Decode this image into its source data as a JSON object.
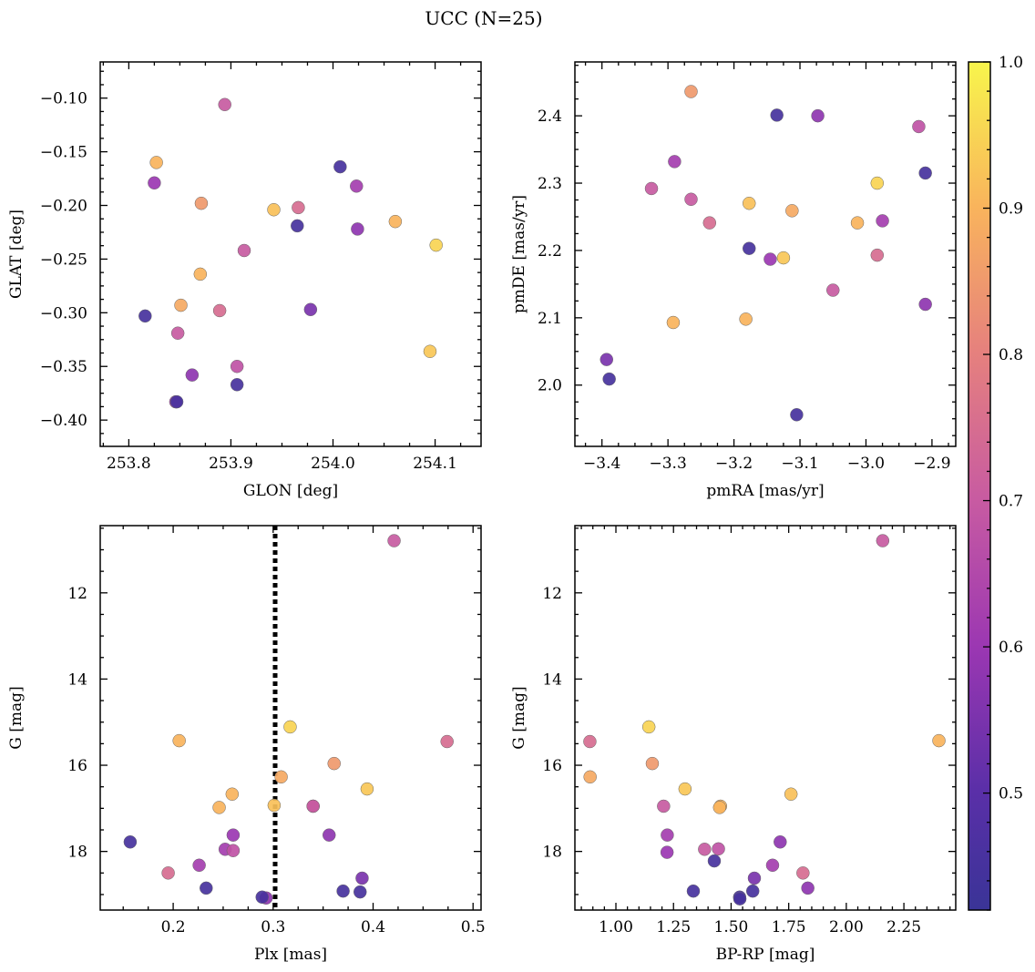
{
  "chart_data": {
    "title": "UCC (N=25)",
    "colormap": "plasma",
    "colorbar": {
      "range": [
        0.42,
        1.0
      ],
      "ticks": [
        0.5,
        0.6,
        0.7,
        0.8,
        0.9,
        1.0
      ],
      "tick_labels": [
        "0.5",
        "0.6",
        "0.7",
        "0.8",
        "0.9",
        "1.0"
      ],
      "placement": "right"
    },
    "point_colors": [
      0.7,
      0.9,
      0.85,
      0.9,
      0.75,
      0.95,
      0.92,
      0.7,
      0.62,
      0.6,
      0.88,
      0.75,
      0.58,
      0.7,
      0.45,
      0.55,
      0.68,
      0.93,
      0.62,
      0.45,
      0.45,
      0.9,
      0.45,
      0.58,
      0.45
    ],
    "panels": [
      {
        "type": "scatter",
        "xlabel": "GLON [deg]",
        "ylabel": "GLAT [deg]",
        "xlim": [
          253.772,
          254.145
        ],
        "ylim": [
          -0.4245,
          -0.0663
        ],
        "xticks": [
          253.8,
          253.9,
          254.0,
          254.1
        ],
        "xtick_labels": [
          "253.8",
          "253.9",
          "254.0",
          "254.1"
        ],
        "yticks": [
          -0.4,
          -0.35,
          -0.3,
          -0.25,
          -0.2,
          -0.15,
          -0.1
        ],
        "ytick_labels": [
          "−0.40",
          "−0.35",
          "−0.30",
          "−0.25",
          "−0.20",
          "−0.15",
          "−0.10"
        ],
        "x": [
          253.894,
          253.827,
          253.871,
          254.061,
          253.966,
          254.101,
          253.942,
          253.913,
          254.023,
          253.825,
          253.851,
          253.889,
          253.862,
          253.848,
          253.965,
          253.978,
          253.906,
          254.095,
          253.846,
          253.816,
          253.906,
          253.87,
          253.847,
          254.024,
          254.007
        ],
        "y": [
          -0.106,
          -0.16,
          -0.198,
          -0.215,
          -0.202,
          -0.237,
          -0.204,
          -0.242,
          -0.182,
          -0.179,
          -0.293,
          -0.298,
          -0.358,
          -0.319,
          -0.219,
          -0.297,
          -0.35,
          -0.336,
          -0.383,
          -0.303,
          -0.367,
          -0.264,
          -0.383,
          -0.222,
          -0.164
        ]
      },
      {
        "type": "scatter",
        "xlabel": "pmRA [mas/yr]",
        "ylabel": "pmDE [mas/yr]",
        "xlim": [
          -3.441,
          -2.864
        ],
        "ylim": [
          1.909,
          2.48
        ],
        "xticks": [
          -3.4,
          -3.3,
          -3.2,
          -3.1,
          -3.0,
          -2.9
        ],
        "xtick_labels": [
          "−3.4",
          "−3.3",
          "−3.2",
          "−3.1",
          "−3.0",
          "−2.9"
        ],
        "yticks": [
          2.0,
          2.1,
          2.2,
          2.3,
          2.4
        ],
        "ytick_labels": [
          "2.0",
          "2.1",
          "2.2",
          "2.3",
          "2.4"
        ],
        "x": [
          -3.05,
          -3.292,
          -3.265,
          -3.013,
          -3.237,
          -2.983,
          -3.177,
          -3.265,
          -2.975,
          -3.145,
          -3.112,
          -2.983,
          -2.91,
          -3.325,
          -3.177,
          -3.393,
          -2.92,
          -3.125,
          -3.29,
          -3.135,
          -2.91,
          -3.182,
          -3.389,
          -3.073,
          -3.105
        ],
        "y": [
          2.141,
          2.093,
          2.436,
          2.241,
          2.241,
          2.3,
          2.27,
          2.276,
          2.244,
          2.187,
          2.259,
          2.193,
          2.12,
          2.292,
          2.203,
          2.038,
          2.384,
          2.189,
          2.332,
          2.401,
          2.315,
          2.098,
          2.009,
          2.4,
          1.956
        ]
      },
      {
        "type": "scatter",
        "xlabel": "Plx [mas]",
        "ylabel": "G [mag]",
        "xlim": [
          0.127,
          0.508
        ],
        "ylim": [
          19.36,
          10.44
        ],
        "xticks": [
          0.2,
          0.3,
          0.4,
          0.5
        ],
        "xtick_labels": [
          "0.2",
          "0.3",
          "0.4",
          "0.5"
        ],
        "yticks": [
          12,
          14,
          16,
          18
        ],
        "ytick_labels": [
          "12",
          "14",
          "16",
          "18"
        ],
        "vline": {
          "x": 0.302,
          "style": "dotted"
        },
        "x": [
          0.421,
          0.206,
          0.361,
          0.259,
          0.474,
          0.317,
          0.301,
          0.34,
          0.252,
          0.26,
          0.308,
          0.195,
          0.356,
          0.34,
          0.233,
          0.389,
          0.26,
          0.394,
          0.226,
          0.37,
          0.387,
          0.246,
          0.157,
          0.293,
          0.289
        ],
        "y": [
          10.79,
          15.43,
          15.96,
          16.67,
          15.45,
          15.11,
          16.93,
          16.95,
          17.95,
          17.62,
          16.27,
          18.5,
          17.62,
          16.95,
          18.85,
          18.62,
          17.98,
          16.55,
          18.32,
          18.92,
          18.94,
          16.98,
          17.78,
          19.08,
          19.06
        ]
      },
      {
        "type": "scatter",
        "xlabel": "BP-RP [mag]",
        "ylabel": "G [mag]",
        "xlim": [
          0.822,
          2.475
        ],
        "ylim": [
          19.36,
          10.44
        ],
        "xticks": [
          1.0,
          1.25,
          1.5,
          1.75,
          2.0,
          2.25
        ],
        "xtick_labels": [
          "1.00",
          "1.25",
          "1.50",
          "1.75",
          "2.00",
          "2.25"
        ],
        "yticks": [
          12,
          14,
          16,
          18
        ],
        "ytick_labels": [
          "12",
          "14",
          "16",
          "18"
        ],
        "x": [
          2.158,
          2.402,
          1.158,
          1.454,
          0.887,
          1.143,
          1.76,
          1.385,
          1.223,
          1.222,
          0.888,
          1.812,
          1.713,
          1.207,
          1.427,
          1.601,
          1.445,
          1.3,
          1.68,
          1.336,
          1.537,
          1.45,
          1.594,
          1.833,
          1.538
        ],
        "y": [
          10.79,
          15.43,
          15.96,
          16.95,
          15.45,
          15.11,
          16.67,
          17.95,
          17.62,
          18.02,
          16.27,
          18.5,
          17.78,
          16.95,
          18.22,
          18.62,
          17.94,
          16.55,
          18.32,
          18.92,
          19.06,
          16.98,
          18.92,
          18.85,
          19.1
        ]
      }
    ]
  }
}
